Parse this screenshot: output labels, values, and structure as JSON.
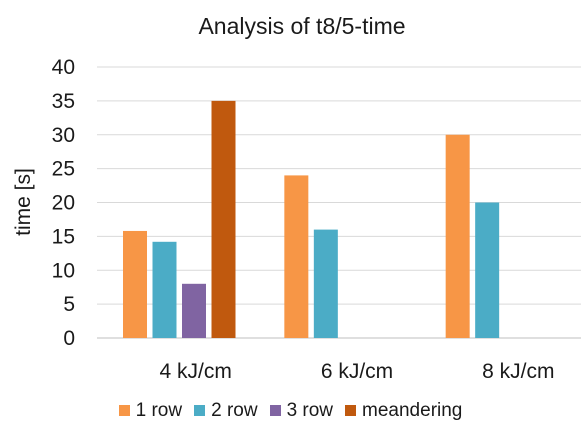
{
  "chart_data": {
    "type": "bar",
    "title": "Analysis of t8/5-time",
    "xlabel": "",
    "ylabel": "time [s]",
    "ylim": [
      0,
      40
    ],
    "yticks": [
      0,
      5,
      10,
      15,
      20,
      25,
      30,
      35,
      40
    ],
    "grid": true,
    "legend": "bottom",
    "categories": [
      "4 kJ/cm",
      "6 kJ/cm",
      "8 kJ/cm"
    ],
    "series": [
      {
        "name": "1 row",
        "color": "#F79646",
        "values": [
          15.8,
          24,
          30
        ]
      },
      {
        "name": "2 row",
        "color": "#4BACC6",
        "values": [
          14.2,
          16,
          20
        ]
      },
      {
        "name": "3 row",
        "color": "#8064A2",
        "values": [
          8,
          null,
          null
        ]
      },
      {
        "name": "meandering",
        "color": "#C0590E",
        "values": [
          35,
          null,
          null
        ]
      }
    ]
  }
}
